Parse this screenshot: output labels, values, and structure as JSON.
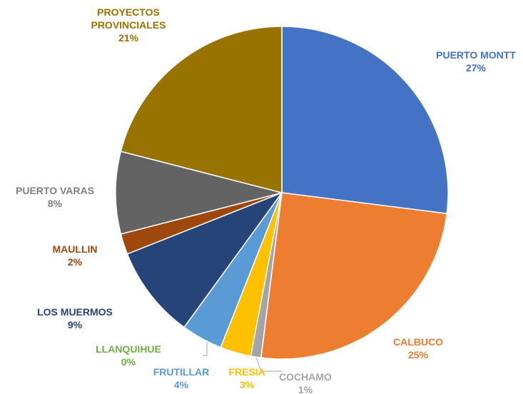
{
  "chart_data": {
    "type": "pie",
    "categories": [
      "PUERTO MONTT",
      "CALBUCO",
      "COCHAMO",
      "FRESIA",
      "FRUTILLAR",
      "LLANQUIHUE",
      "LOS MUERMOS",
      "MAULLIN",
      "PUERTO VARAS",
      "PROYECTOS PROVINCIALES"
    ],
    "values": [
      27,
      25,
      1,
      3,
      4,
      0,
      9,
      2,
      8,
      21
    ],
    "value_labels": [
      "27%",
      "25%",
      "1%",
      "3%",
      "4%",
      "0%",
      "9%",
      "2%",
      "8%",
      "21%"
    ],
    "colors": [
      "#4472c4",
      "#ed7d31",
      "#a5a5a5",
      "#ffc000",
      "#5b9bd5",
      "#70ad47",
      "#264478",
      "#9e480e",
      "#636363",
      "#997300"
    ]
  }
}
